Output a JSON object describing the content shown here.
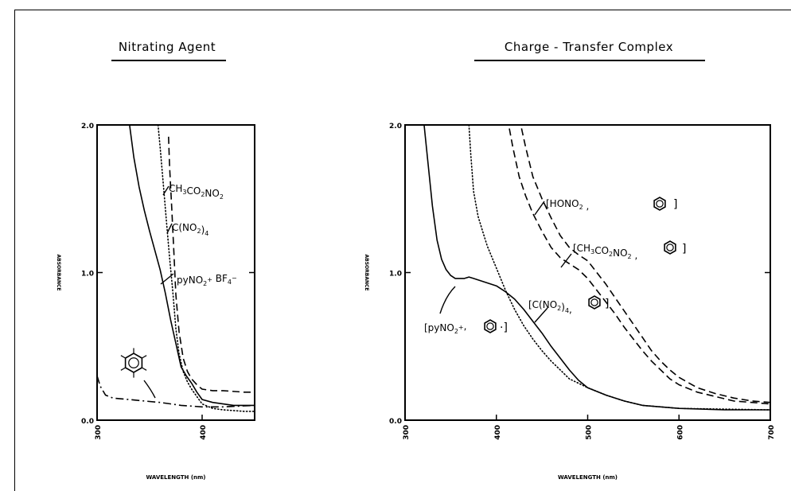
{
  "chart_data": [
    {
      "type": "line",
      "title": "Nitrating Agent",
      "xlabel": "WAVELENGTH (nm)",
      "ylabel": "ABSORBANCE",
      "xlim": [
        300,
        450
      ],
      "ylim": [
        0.0,
        2.0
      ],
      "x_ticks": [
        300,
        400
      ],
      "x_tick_labels": [
        "300",
        "400"
      ],
      "y_ticks": [
        0.0,
        1.0,
        2.0
      ],
      "y_tick_labels": [
        "0.0",
        "1.0",
        "2.0"
      ],
      "grid": false,
      "series": [
        {
          "name": "pyNO2+ BF4-",
          "style": "solid",
          "points": [
            [
              330,
              2.05
            ],
            [
              335,
              1.78
            ],
            [
              340,
              1.58
            ],
            [
              345,
              1.42
            ],
            [
              350,
              1.28
            ],
            [
              355,
              1.15
            ],
            [
              360,
              1.02
            ],
            [
              365,
              0.86
            ],
            [
              370,
              0.68
            ],
            [
              375,
              0.52
            ],
            [
              380,
              0.36
            ],
            [
              385,
              0.3
            ],
            [
              390,
              0.25
            ],
            [
              395,
              0.19
            ],
            [
              400,
              0.14
            ],
            [
              410,
              0.12
            ],
            [
              420,
              0.11
            ],
            [
              430,
              0.1
            ],
            [
              450,
              0.1
            ]
          ]
        },
        {
          "name": "C(NO2)4",
          "style": "dotted",
          "points": [
            [
              358,
              2.0
            ],
            [
              360,
              1.85
            ],
            [
              363,
              1.6
            ],
            [
              366,
              1.35
            ],
            [
              369,
              1.1
            ],
            [
              372,
              0.88
            ],
            [
              375,
              0.62
            ],
            [
              378,
              0.45
            ],
            [
              382,
              0.33
            ],
            [
              386,
              0.26
            ],
            [
              390,
              0.21
            ],
            [
              395,
              0.16
            ],
            [
              400,
              0.11
            ],
            [
              410,
              0.08
            ],
            [
              420,
              0.07
            ],
            [
              440,
              0.06
            ],
            [
              450,
              0.06
            ]
          ]
        },
        {
          "name": "CH3CO2NO2",
          "style": "dashed",
          "points": [
            [
              368,
              1.92
            ],
            [
              369,
              1.72
            ],
            [
              371,
              1.45
            ],
            [
              373,
              1.15
            ],
            [
              375,
              0.85
            ],
            [
              378,
              0.6
            ],
            [
              382,
              0.42
            ],
            [
              386,
              0.33
            ],
            [
              390,
              0.28
            ],
            [
              395,
              0.24
            ],
            [
              400,
              0.21
            ],
            [
              410,
              0.2
            ],
            [
              420,
              0.2
            ],
            [
              440,
              0.19
            ],
            [
              450,
              0.19
            ]
          ]
        },
        {
          "name": "",
          "style": "dashdot",
          "points": [
            [
              300,
              0.3
            ],
            [
              303,
              0.23
            ],
            [
              308,
              0.17
            ],
            [
              315,
              0.15
            ],
            [
              330,
              0.14
            ],
            [
              345,
              0.13
            ],
            [
              360,
              0.12
            ],
            [
              380,
              0.1
            ],
            [
              400,
              0.09
            ],
            [
              420,
              0.09
            ],
            [
              450,
              0.1
            ]
          ]
        }
      ],
      "annotations": [
        "CH3CO2NO2",
        "C(NO2)4",
        "pyNO2+ BF4-",
        "benzene"
      ]
    },
    {
      "type": "line",
      "title": "Charge - Transfer Complex",
      "xlabel": "WAVELENGTH (nm)",
      "ylabel": "ABSORBANCE",
      "xlim": [
        300,
        700
      ],
      "ylim": [
        0.0,
        2.0
      ],
      "x_ticks": [
        300,
        400,
        500,
        600,
        700
      ],
      "x_tick_labels": [
        "300",
        "400",
        "500",
        "600",
        "700"
      ],
      "y_ticks": [
        0.0,
        1.0,
        2.0
      ],
      "y_tick_labels": [
        "0.0",
        "1.0",
        "2.0"
      ],
      "grid": false,
      "series": [
        {
          "name": "[pyNO2+, benzene]",
          "style": "solid",
          "points": [
            [
              320,
              2.05
            ],
            [
              325,
              1.75
            ],
            [
              330,
              1.45
            ],
            [
              335,
              1.22
            ],
            [
              340,
              1.09
            ],
            [
              345,
              1.02
            ],
            [
              350,
              0.98
            ],
            [
              355,
              0.96
            ],
            [
              360,
              0.96
            ],
            [
              365,
              0.96
            ],
            [
              370,
              0.97
            ],
            [
              375,
              0.96
            ],
            [
              380,
              0.95
            ],
            [
              390,
              0.93
            ],
            [
              400,
              0.91
            ],
            [
              410,
              0.87
            ],
            [
              420,
              0.82
            ],
            [
              430,
              0.75
            ],
            [
              440,
              0.67
            ],
            [
              450,
              0.59
            ],
            [
              460,
              0.5
            ],
            [
              470,
              0.42
            ],
            [
              480,
              0.34
            ],
            [
              490,
              0.27
            ],
            [
              500,
              0.22
            ],
            [
              520,
              0.17
            ],
            [
              540,
              0.13
            ],
            [
              560,
              0.1
            ],
            [
              580,
              0.09
            ],
            [
              600,
              0.08
            ],
            [
              650,
              0.07
            ],
            [
              700,
              0.07
            ]
          ]
        },
        {
          "name": "[C(NO2)4, benzene]",
          "style": "dotted",
          "points": [
            [
              370,
              2.0
            ],
            [
              372,
              1.8
            ],
            [
              375,
              1.55
            ],
            [
              380,
              1.38
            ],
            [
              385,
              1.28
            ],
            [
              390,
              1.18
            ],
            [
              400,
              1.03
            ],
            [
              410,
              0.88
            ],
            [
              420,
              0.75
            ],
            [
              430,
              0.64
            ],
            [
              440,
              0.55
            ],
            [
              450,
              0.47
            ],
            [
              460,
              0.4
            ],
            [
              470,
              0.34
            ],
            [
              480,
              0.28
            ],
            [
              490,
              0.25
            ],
            [
              500,
              0.22
            ],
            [
              520,
              0.17
            ],
            [
              540,
              0.13
            ],
            [
              560,
              0.1
            ],
            [
              580,
              0.09
            ],
            [
              600,
              0.08
            ],
            [
              700,
              0.07
            ]
          ]
        },
        {
          "name": "[CH3CO2NO2, benzene]",
          "style": "dashed",
          "points": [
            [
              412,
              2.05
            ],
            [
              418,
              1.85
            ],
            [
              425,
              1.65
            ],
            [
              432,
              1.52
            ],
            [
              440,
              1.4
            ],
            [
              450,
              1.28
            ],
            [
              460,
              1.17
            ],
            [
              470,
              1.1
            ],
            [
              480,
              1.06
            ],
            [
              490,
              1.02
            ],
            [
              500,
              0.96
            ],
            [
              510,
              0.88
            ],
            [
              520,
              0.8
            ],
            [
              530,
              0.72
            ],
            [
              540,
              0.63
            ],
            [
              550,
              0.55
            ],
            [
              560,
              0.47
            ],
            [
              570,
              0.4
            ],
            [
              580,
              0.34
            ],
            [
              590,
              0.28
            ],
            [
              600,
              0.24
            ],
            [
              620,
              0.19
            ],
            [
              640,
              0.16
            ],
            [
              660,
              0.13
            ],
            [
              680,
              0.12
            ],
            [
              700,
              0.11
            ]
          ]
        },
        {
          "name": "[HONO2, benzene]",
          "style": "dashed",
          "points": [
            [
              425,
              2.05
            ],
            [
              432,
              1.85
            ],
            [
              440,
              1.65
            ],
            [
              450,
              1.5
            ],
            [
              460,
              1.37
            ],
            [
              470,
              1.25
            ],
            [
              480,
              1.17
            ],
            [
              490,
              1.12
            ],
            [
              500,
              1.08
            ],
            [
              510,
              1.0
            ],
            [
              520,
              0.92
            ],
            [
              530,
              0.83
            ],
            [
              540,
              0.74
            ],
            [
              550,
              0.65
            ],
            [
              560,
              0.56
            ],
            [
              570,
              0.47
            ],
            [
              580,
              0.4
            ],
            [
              590,
              0.34
            ],
            [
              600,
              0.29
            ],
            [
              620,
              0.22
            ],
            [
              640,
              0.18
            ],
            [
              660,
              0.15
            ],
            [
              680,
              0.13
            ],
            [
              700,
              0.12
            ]
          ]
        }
      ],
      "annotations": [
        "[HONO2, benzene]",
        "[CH3CO2NO2, benzene]",
        "[C(NO2)4, benzene]",
        "[pyNO2+, benzene]"
      ]
    }
  ]
}
